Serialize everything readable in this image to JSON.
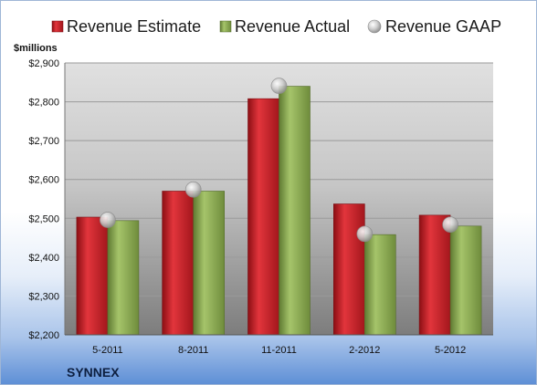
{
  "chart_data": {
    "type": "bar",
    "company": "SYNNEX",
    "ylabel": "$millions",
    "categories": [
      "5-2011",
      "8-2011",
      "11-2011",
      "2-2012",
      "5-2012"
    ],
    "ylim": [
      2200,
      2900
    ],
    "yticks": [
      2200,
      2300,
      2400,
      2500,
      2600,
      2700,
      2800,
      2900
    ],
    "ytick_labels": [
      "$2,200",
      "$2,300",
      "$2,400",
      "$2,500",
      "$2,600",
      "$2,700",
      "$2,800",
      "$2,900"
    ],
    "series": [
      {
        "name": "Revenue Estimate",
        "type": "bar",
        "color": "#c8232b",
        "values": [
          2503,
          2570,
          2808,
          2537,
          2508
        ]
      },
      {
        "name": "Revenue Actual",
        "type": "bar",
        "color": "#8aa852",
        "values": [
          2494,
          2570,
          2840,
          2458,
          2480
        ]
      },
      {
        "name": "Revenue GAAP",
        "type": "marker",
        "color": "#c0c0c0",
        "values": [
          2496,
          2574,
          2841,
          2460,
          2484
        ]
      }
    ],
    "grid": true,
    "legend_position": "top"
  }
}
